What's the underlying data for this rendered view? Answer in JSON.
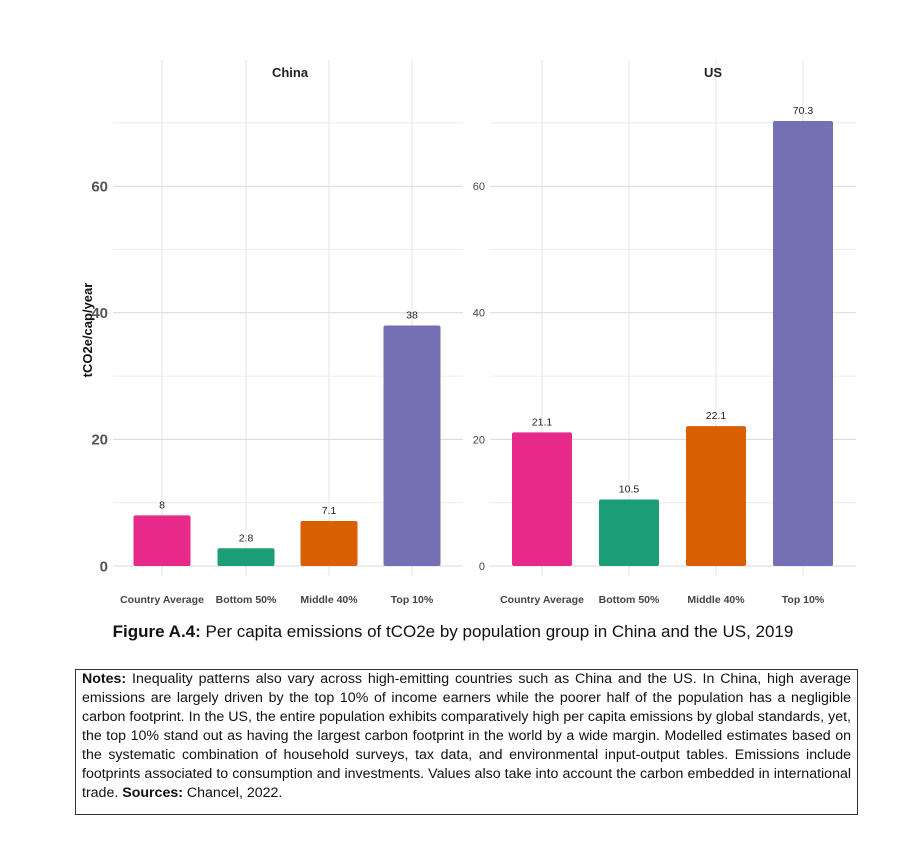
{
  "chart_data": {
    "type": "bar",
    "ylabel": "tCO2e/cap/year",
    "categories": [
      "Country Average",
      "Bottom 50%",
      "Middle 40%",
      "Top 10%"
    ],
    "colors": [
      "#e7298a",
      "#1b9e77",
      "#d95f02",
      "#7570b3"
    ],
    "ylim": [
      0,
      75
    ],
    "yticks": [
      0,
      20,
      40,
      60
    ],
    "grid": true,
    "panels": [
      {
        "title": "China",
        "values": [
          8,
          2.8,
          7.1,
          38
        ],
        "labels": [
          "8",
          "2.8",
          "7.1",
          "38"
        ]
      },
      {
        "title": "US",
        "values": [
          21.1,
          10.5,
          22.1,
          70.3
        ],
        "labels": [
          "21.1",
          "10.5",
          "22.1",
          "70.3"
        ]
      }
    ]
  },
  "caption": {
    "label": "Figure A.4:",
    "text": "Per capita emissions of tCO2e by population group in China and the US, 2019"
  },
  "notes": {
    "label": "Notes:",
    "text": "Inequality patterns also vary across high-emitting countries such as China and the US. In China, high average emissions are largely driven by the top 10% of income earners while the poorer half of the population has a negligible carbon footprint. In the US, the entire population exhibits comparatively high per capita emissions by global standards, yet, the top 10% stand out as having the largest carbon footprint in the world by a wide margin. Modelled estimates based on the systematic combination of household surveys, tax data, and environmental input-output tables. Emissions include footprints associated to consumption and investments. Values also take into account the carbon embedded in international trade.",
    "sources_label": "Sources:",
    "sources_text": "Chancel, 2022."
  }
}
